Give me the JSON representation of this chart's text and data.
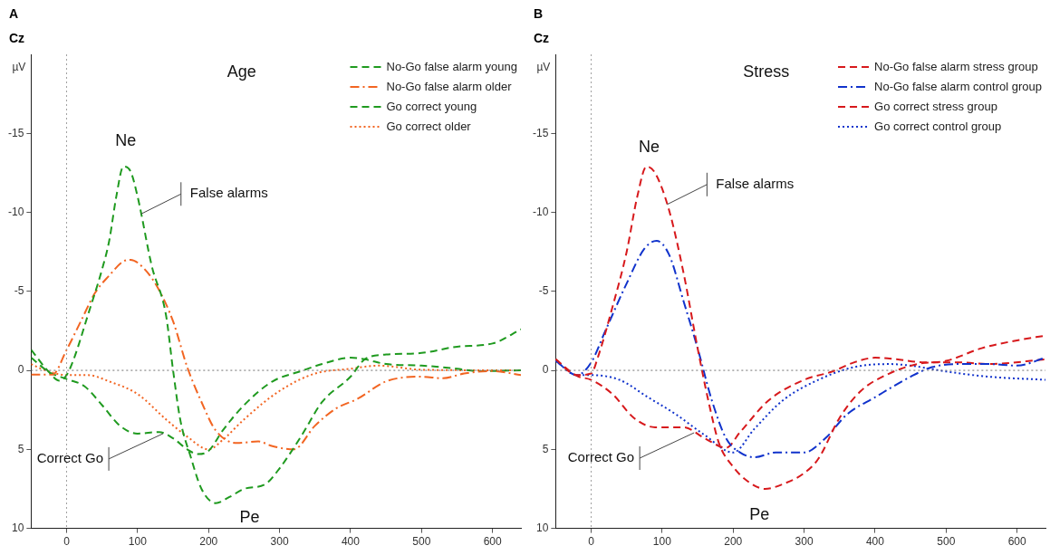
{
  "chart_data": [
    {
      "type": "line",
      "title": "Age",
      "ref_lines": [
        {
          "axis": "x",
          "value": 0,
          "color": "#a0a0a0",
          "line_style": "dotted"
        },
        {
          "axis": "y",
          "value": 0,
          "color": "#707070",
          "line_style": "dotted"
        }
      ],
      "ylabel": "µV",
      "annotations": [
        "A",
        "Cz",
        "Ne",
        "Pe",
        {
          "text": "False alarms",
          "x": 105,
          "y": -9.9
        },
        {
          "text": "Correct Go",
          "x": 136,
          "y": 4
        }
      ],
      "xlim": [
        -50,
        640
      ],
      "xticks": [
        0,
        100,
        200,
        300,
        400,
        500,
        600
      ],
      "ylim": [
        10,
        -20
      ],
      "yticks": [
        -15,
        -10,
        -5,
        0,
        5,
        10
      ],
      "grid": false,
      "legend": "top right",
      "marker": "none",
      "series": [
        {
          "name": "No-Go false alarm young",
          "color": "#1f9a1f",
          "line_style": "dashed",
          "x": [
            -50,
            -25,
            -10,
            0,
            10,
            30,
            50,
            60,
            70,
            80,
            90,
            100,
            120,
            140,
            150,
            160,
            175,
            190,
            210,
            230,
            250,
            280,
            300,
            330,
            360,
            400,
            420,
            450,
            500,
            550,
            600,
            640
          ],
          "values": [
            -1.3,
            0.1,
            0.66,
            0.3,
            -0.7,
            -3.5,
            -6.4,
            -8.2,
            -11,
            -12.9,
            -12.6,
            -11,
            -6.6,
            -3.5,
            0,
            3.1,
            5.5,
            7.5,
            8.4,
            8,
            7.5,
            7.2,
            6.2,
            4.2,
            2,
            0.4,
            -0.7,
            -1,
            -1.1,
            -1.5,
            -1.7,
            -2.6
          ]
        },
        {
          "name": "No-Go false alarm older",
          "color": "#f26522",
          "line_style": "dashdot",
          "x": [
            -50,
            -20,
            0,
            20,
            40,
            60,
            80,
            90,
            110,
            130,
            150,
            170,
            190,
            210,
            240,
            270,
            290,
            320,
            350,
            380,
            410,
            450,
            500,
            530,
            560,
            600,
            640
          ],
          "values": [
            0.27,
            0.27,
            -1.3,
            -3.1,
            -4.9,
            -6,
            -6.9,
            -7,
            -6.4,
            -5.1,
            -3.1,
            -0.2,
            2,
            3.8,
            4.6,
            4.5,
            4.8,
            5,
            3.5,
            2.4,
            1.8,
            0.7,
            0.4,
            0.5,
            0.2,
            0.04,
            0.3
          ]
        },
        {
          "name": "Go correct young",
          "color": "#1f9a1f",
          "line_style": "dashed",
          "x": [
            -50,
            -25,
            0,
            25,
            50,
            75,
            100,
            130,
            150,
            170,
            185,
            200,
            220,
            250,
            290,
            330,
            360,
            400,
            420,
            450,
            500,
            550,
            580,
            640
          ],
          "values": [
            -0.8,
            0.1,
            0.55,
            1,
            2.2,
            3.5,
            4,
            3.9,
            4.3,
            5,
            5.3,
            5.1,
            3.8,
            2.2,
            0.7,
            0.05,
            -0.4,
            -0.8,
            -0.7,
            -0.4,
            -0.3,
            -0.1,
            0.05,
            0
          ]
        },
        {
          "name": "Go correct older",
          "color": "#f26522",
          "line_style": "dotted",
          "x": [
            -50,
            -30,
            0,
            30,
            60,
            100,
            140,
            170,
            200,
            220,
            250,
            300,
            350,
            400,
            440,
            500,
            640
          ],
          "values": [
            -0.4,
            0,
            0.3,
            0.3,
            0.7,
            1.5,
            3.1,
            4.2,
            5,
            4.4,
            3.1,
            1.3,
            0.2,
            -0.1,
            -0.3,
            -0.04,
            0
          ]
        }
      ]
    },
    {
      "type": "line",
      "title": "Stress",
      "ref_lines": [
        {
          "axis": "x",
          "value": 0,
          "color": "#a0a0a0",
          "line_style": "dotted"
        },
        {
          "axis": "y",
          "value": 0,
          "color": "#707070",
          "line_style": "dotted"
        }
      ],
      "ylabel": "µV",
      "annotations": [
        "B",
        "Cz",
        "Ne",
        "Pe",
        {
          "text": "False alarms",
          "x": 107,
          "y": -10.5
        },
        {
          "text": "Correct Go",
          "x": 145,
          "y": 3.95
        }
      ],
      "xlim": [
        -50,
        640
      ],
      "xticks": [
        0,
        100,
        200,
        300,
        400,
        500,
        600
      ],
      "ylim": [
        10,
        -20
      ],
      "yticks": [
        -15,
        -10,
        -5,
        0,
        5,
        10
      ],
      "grid": false,
      "legend": "top right",
      "marker": "none",
      "series": [
        {
          "name": "No-Go false alarm stress group",
          "color": "#d7191c",
          "line_style": "dashed",
          "x": [
            -50,
            -20,
            0,
            10,
            30,
            50,
            65,
            78,
            90,
            110,
            130,
            150,
            165,
            180,
            200,
            220,
            245,
            270,
            300,
            320,
            350,
            380,
            420,
            460,
            500,
            550,
            600,
            640
          ],
          "values": [
            -0.7,
            0.3,
            0.2,
            -0.9,
            -4,
            -7.5,
            -11,
            -12.9,
            -12.5,
            -10.1,
            -6.2,
            -1.4,
            1.9,
            4.6,
            6.1,
            7,
            7.5,
            7.2,
            6.5,
            5.6,
            3,
            1.3,
            0.2,
            -0.4,
            -0.6,
            -1.4,
            -1.9,
            -2.2
          ]
        },
        {
          "name": "No-Go false alarm control group",
          "color": "#1133cc",
          "line_style": "dashdot",
          "x": [
            -50,
            -20,
            0,
            20,
            50,
            75,
            92,
            110,
            130,
            150,
            170,
            190,
            210,
            230,
            260,
            300,
            330,
            360,
            400,
            450,
            480,
            520,
            560,
            600,
            640
          ],
          "values": [
            -0.6,
            0.3,
            -0.5,
            -2.5,
            -5.5,
            -7.7,
            -8.2,
            -7.3,
            -4.4,
            -1.4,
            1.9,
            4.3,
            5.2,
            5.5,
            5.2,
            5.2,
            4.3,
            2.8,
            1.7,
            0.4,
            -0.2,
            -0.4,
            -0.4,
            -0.3,
            -0.8
          ]
        },
        {
          "name": "Go correct stress group",
          "color": "#d7191c",
          "line_style": "dashed",
          "x": [
            -50,
            -20,
            0,
            30,
            60,
            90,
            130,
            160,
            190,
            210,
            250,
            300,
            340,
            370,
            400,
            430,
            470,
            520,
            560,
            640
          ],
          "values": [
            -0.7,
            0.35,
            0.6,
            1.5,
            3,
            3.6,
            3.6,
            4.3,
            4.9,
            3.9,
            1.9,
            0.6,
            0.07,
            -0.5,
            -0.8,
            -0.7,
            -0.5,
            -0.5,
            -0.4,
            -0.7
          ]
        },
        {
          "name": "Go correct control group",
          "color": "#1133cc",
          "line_style": "dotted",
          "x": [
            -50,
            -20,
            0,
            40,
            80,
            120,
            160,
            200,
            230,
            270,
            320,
            370,
            420,
            450,
            500,
            560,
            640
          ],
          "values": [
            -0.6,
            0.3,
            0.3,
            0.6,
            1.7,
            2.8,
            4.1,
            5.2,
            3.7,
            1.9,
            0.6,
            -0.2,
            -0.4,
            -0.3,
            0.07,
            0.4,
            0.6
          ]
        }
      ]
    }
  ]
}
